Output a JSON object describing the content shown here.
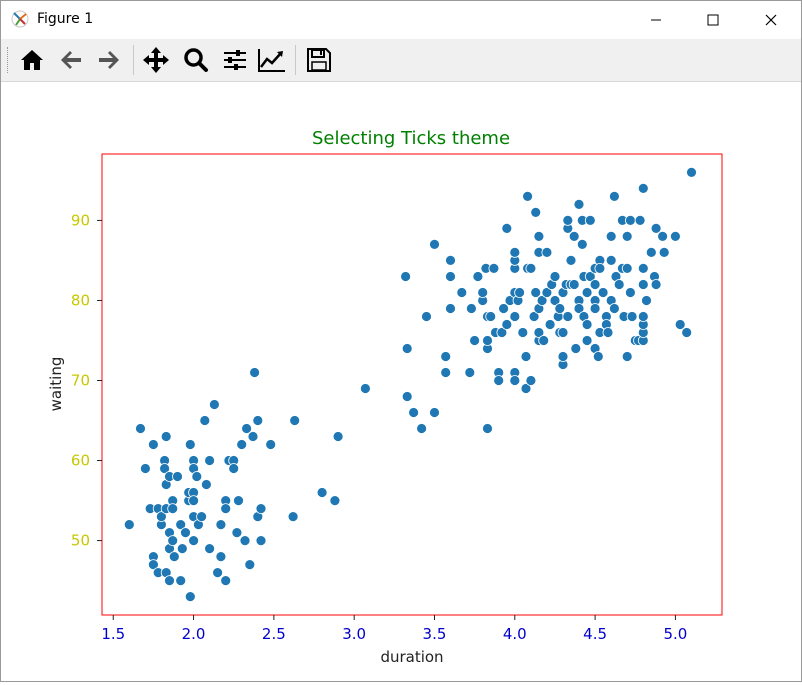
{
  "window": {
    "title": "Figure 1",
    "controls": [
      "minimize",
      "maximize",
      "close"
    ]
  },
  "toolbar": {
    "buttons": [
      {
        "name": "home",
        "icon": "home-icon"
      },
      {
        "name": "back",
        "icon": "arrow-left-icon"
      },
      {
        "name": "forward",
        "icon": "arrow-right-icon"
      },
      {
        "name": "pan",
        "icon": "move-icon"
      },
      {
        "name": "zoom",
        "icon": "zoom-icon"
      },
      {
        "name": "configure-subplots",
        "icon": "sliders-icon"
      },
      {
        "name": "edit-axis",
        "icon": "trend-chart-icon"
      },
      {
        "name": "save",
        "icon": "floppy-disk-icon"
      }
    ]
  },
  "colors": {
    "title": "#008000",
    "x_ticks": "#0000cc",
    "y_ticks": "#c8c800",
    "frame": "#ff0000",
    "points": "#1f77b4"
  },
  "chart_data": {
    "type": "scatter",
    "title": "Selecting Ticks theme",
    "xlabel": "duration",
    "ylabel": "waiting",
    "xlim": [
      1.43,
      5.29
    ],
    "ylim": [
      40.7,
      98.3
    ],
    "xticks": [
      1.5,
      2.0,
      2.5,
      3.0,
      3.5,
      4.0,
      4.5,
      5.0
    ],
    "xtick_labels": [
      "1.5",
      "2.0",
      "2.5",
      "3.0",
      "3.5",
      "4.0",
      "4.5",
      "5.0"
    ],
    "yticks": [
      50,
      60,
      70,
      80,
      90
    ],
    "ytick_labels": [
      "50",
      "60",
      "70",
      "80",
      "90"
    ],
    "grid": false,
    "points": [
      [
        1.6,
        52
      ],
      [
        1.67,
        64
      ],
      [
        1.7,
        59
      ],
      [
        1.73,
        54
      ],
      [
        1.75,
        62
      ],
      [
        1.75,
        48
      ],
      [
        1.75,
        47
      ],
      [
        1.78,
        54
      ],
      [
        1.78,
        46
      ],
      [
        1.8,
        52
      ],
      [
        1.8,
        53
      ],
      [
        1.82,
        60
      ],
      [
        1.82,
        59
      ],
      [
        1.83,
        63
      ],
      [
        1.83,
        57
      ],
      [
        1.83,
        54
      ],
      [
        1.83,
        46
      ],
      [
        1.85,
        58
      ],
      [
        1.85,
        51
      ],
      [
        1.85,
        49
      ],
      [
        1.85,
        45
      ],
      [
        1.87,
        55
      ],
      [
        1.87,
        54
      ],
      [
        1.87,
        50
      ],
      [
        1.88,
        48
      ],
      [
        1.9,
        58
      ],
      [
        1.92,
        45
      ],
      [
        1.92,
        52
      ],
      [
        1.93,
        49
      ],
      [
        1.95,
        51
      ],
      [
        1.97,
        55
      ],
      [
        1.97,
        56
      ],
      [
        1.98,
        62
      ],
      [
        1.98,
        43
      ],
      [
        2.0,
        60
      ],
      [
        2.0,
        59
      ],
      [
        2.0,
        56
      ],
      [
        2.0,
        55
      ],
      [
        2.0,
        50
      ],
      [
        2.0,
        53
      ],
      [
        2.02,
        58
      ],
      [
        2.03,
        52
      ],
      [
        2.05,
        53
      ],
      [
        2.07,
        65
      ],
      [
        2.08,
        57
      ],
      [
        2.1,
        60
      ],
      [
        2.1,
        49
      ],
      [
        2.13,
        67
      ],
      [
        2.15,
        46
      ],
      [
        2.17,
        48
      ],
      [
        2.17,
        52
      ],
      [
        2.2,
        45
      ],
      [
        2.2,
        55
      ],
      [
        2.2,
        54
      ],
      [
        2.22,
        60
      ],
      [
        2.25,
        60
      ],
      [
        2.25,
        59
      ],
      [
        2.27,
        51
      ],
      [
        2.28,
        55
      ],
      [
        2.3,
        62
      ],
      [
        2.32,
        50
      ],
      [
        2.33,
        64
      ],
      [
        2.35,
        47
      ],
      [
        2.37,
        63
      ],
      [
        2.38,
        71
      ],
      [
        2.4,
        65
      ],
      [
        2.4,
        53
      ],
      [
        2.42,
        50
      ],
      [
        2.42,
        54
      ],
      [
        2.48,
        62
      ],
      [
        2.62,
        53
      ],
      [
        2.63,
        65
      ],
      [
        2.8,
        56
      ],
      [
        2.88,
        55
      ],
      [
        2.9,
        63
      ],
      [
        3.07,
        69
      ],
      [
        3.32,
        83
      ],
      [
        3.33,
        74
      ],
      [
        3.33,
        68
      ],
      [
        3.37,
        66
      ],
      [
        3.42,
        64
      ],
      [
        3.45,
        78
      ],
      [
        3.5,
        87
      ],
      [
        3.5,
        66
      ],
      [
        3.57,
        71
      ],
      [
        3.57,
        73
      ],
      [
        3.6,
        79
      ],
      [
        3.6,
        85
      ],
      [
        3.6,
        83
      ],
      [
        3.67,
        81
      ],
      [
        3.72,
        71
      ],
      [
        3.73,
        79
      ],
      [
        3.75,
        75
      ],
      [
        3.77,
        83
      ],
      [
        3.8,
        80
      ],
      [
        3.8,
        81
      ],
      [
        3.82,
        84
      ],
      [
        3.83,
        64
      ],
      [
        3.83,
        74
      ],
      [
        3.83,
        75
      ],
      [
        3.83,
        78
      ],
      [
        3.85,
        78
      ],
      [
        3.87,
        84
      ],
      [
        3.88,
        76
      ],
      [
        3.9,
        71
      ],
      [
        3.9,
        70
      ],
      [
        3.92,
        76
      ],
      [
        3.93,
        79
      ],
      [
        3.95,
        77
      ],
      [
        3.95,
        89
      ],
      [
        3.97,
        80
      ],
      [
        4.0,
        84
      ],
      [
        4.0,
        85
      ],
      [
        4.0,
        86
      ],
      [
        4.0,
        81
      ],
      [
        4.0,
        78
      ],
      [
        4.0,
        71
      ],
      [
        4.0,
        70
      ],
      [
        4.02,
        80
      ],
      [
        4.03,
        81
      ],
      [
        4.05,
        76
      ],
      [
        4.07,
        73
      ],
      [
        4.07,
        69
      ],
      [
        4.08,
        84
      ],
      [
        4.08,
        93
      ],
      [
        4.1,
        70
      ],
      [
        4.1,
        84
      ],
      [
        4.12,
        78
      ],
      [
        4.13,
        81
      ],
      [
        4.13,
        91
      ],
      [
        4.15,
        75
      ],
      [
        4.15,
        76
      ],
      [
        4.15,
        79
      ],
      [
        4.15,
        88
      ],
      [
        4.15,
        86
      ],
      [
        4.17,
        80
      ],
      [
        4.18,
        75
      ],
      [
        4.2,
        86
      ],
      [
        4.2,
        81
      ],
      [
        4.22,
        77
      ],
      [
        4.23,
        82
      ],
      [
        4.25,
        83
      ],
      [
        4.25,
        80
      ],
      [
        4.27,
        78
      ],
      [
        4.28,
        76
      ],
      [
        4.28,
        79
      ],
      [
        4.3,
        72
      ],
      [
        4.3,
        73
      ],
      [
        4.3,
        76
      ],
      [
        4.3,
        81
      ],
      [
        4.32,
        82
      ],
      [
        4.33,
        89
      ],
      [
        4.33,
        90
      ],
      [
        4.33,
        78
      ],
      [
        4.35,
        82
      ],
      [
        4.35,
        85
      ],
      [
        4.37,
        88
      ],
      [
        4.37,
        82
      ],
      [
        4.38,
        74
      ],
      [
        4.4,
        92
      ],
      [
        4.4,
        80
      ],
      [
        4.4,
        79
      ],
      [
        4.42,
        90
      ],
      [
        4.42,
        87
      ],
      [
        4.43,
        83
      ],
      [
        4.43,
        78
      ],
      [
        4.45,
        81
      ],
      [
        4.45,
        77
      ],
      [
        4.45,
        75
      ],
      [
        4.47,
        90
      ],
      [
        4.47,
        83
      ],
      [
        4.5,
        80
      ],
      [
        4.5,
        79
      ],
      [
        4.5,
        82
      ],
      [
        4.5,
        84
      ],
      [
        4.5,
        74
      ],
      [
        4.52,
        73
      ],
      [
        4.53,
        76
      ],
      [
        4.53,
        85
      ],
      [
        4.53,
        84
      ],
      [
        4.55,
        81
      ],
      [
        4.57,
        78
      ],
      [
        4.57,
        77
      ],
      [
        4.58,
        76
      ],
      [
        4.6,
        88
      ],
      [
        4.6,
        85
      ],
      [
        4.6,
        80
      ],
      [
        4.62,
        93
      ],
      [
        4.62,
        79
      ],
      [
        4.63,
        83
      ],
      [
        4.65,
        82
      ],
      [
        4.67,
        90
      ],
      [
        4.67,
        84
      ],
      [
        4.68,
        78
      ],
      [
        4.7,
        88
      ],
      [
        4.7,
        84
      ],
      [
        4.7,
        73
      ],
      [
        4.72,
        90
      ],
      [
        4.72,
        81
      ],
      [
        4.73,
        78
      ],
      [
        4.75,
        75
      ],
      [
        4.77,
        75
      ],
      [
        4.78,
        90
      ],
      [
        4.8,
        94
      ],
      [
        4.8,
        84
      ],
      [
        4.8,
        75
      ],
      [
        4.8,
        76
      ],
      [
        4.8,
        77
      ],
      [
        4.8,
        82
      ],
      [
        4.8,
        78
      ],
      [
        4.82,
        80
      ],
      [
        4.85,
        86
      ],
      [
        4.87,
        83
      ],
      [
        4.88,
        89
      ],
      [
        4.88,
        82
      ],
      [
        4.92,
        88
      ],
      [
        4.93,
        86
      ],
      [
        5.0,
        88
      ],
      [
        5.03,
        77
      ],
      [
        5.07,
        76
      ],
      [
        5.1,
        96
      ]
    ]
  }
}
